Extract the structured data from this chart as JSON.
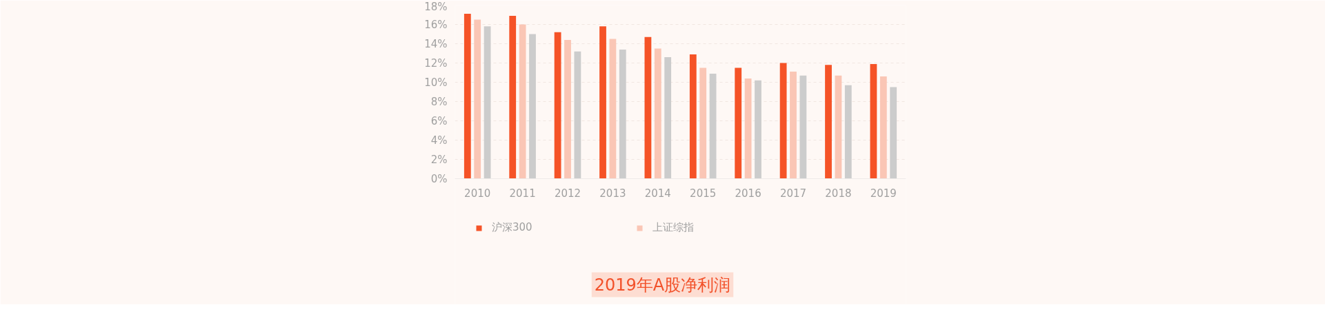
{
  "chart_data": {
    "type": "bar",
    "title": "2019年A股净利润",
    "categories": [
      "2010",
      "2011",
      "2012",
      "2013",
      "2014",
      "2015",
      "2016",
      "2017",
      "2018",
      "2019"
    ],
    "series": [
      {
        "name": "沪深300",
        "color": "#f55327",
        "values": [
          17.1,
          16.9,
          15.2,
          15.8,
          14.7,
          12.9,
          11.5,
          12.0,
          11.8,
          11.9
        ]
      },
      {
        "name": "上证综指",
        "color": "#fac6b5",
        "values": [
          16.5,
          16.0,
          14.4,
          14.5,
          13.5,
          11.5,
          10.4,
          11.1,
          10.7,
          10.6
        ]
      },
      {
        "color": "#cccccc",
        "values": [
          15.8,
          15.0,
          13.2,
          13.4,
          12.6,
          10.9,
          10.2,
          10.7,
          9.7,
          9.5
        ]
      }
    ],
    "ylim": [
      0,
      18
    ],
    "yticks": [
      {
        "value": 0,
        "label": "0%"
      },
      {
        "value": 2,
        "label": "2%"
      },
      {
        "value": 4,
        "label": "4%"
      },
      {
        "value": 6,
        "label": "6%"
      },
      {
        "value": 8,
        "label": "8%"
      },
      {
        "value": 10,
        "label": "10%"
      },
      {
        "value": 12,
        "label": "12%"
      },
      {
        "value": 14,
        "label": "14%"
      },
      {
        "value": 16,
        "label": "16%"
      },
      {
        "value": 18,
        "label": "18%"
      }
    ],
    "grid": "y",
    "legend": "bottom"
  }
}
